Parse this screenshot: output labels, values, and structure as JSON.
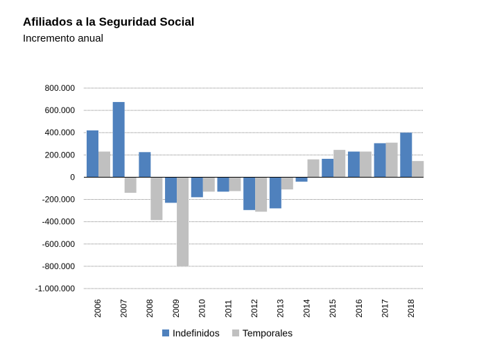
{
  "chart_data": {
    "type": "bar",
    "title": "Afiliados a la Seguridad Social",
    "subtitle": "Incremento anual",
    "categories": [
      "2006",
      "2007",
      "2008",
      "2009",
      "2010",
      "2011",
      "2012",
      "2013",
      "2014",
      "2015",
      "2016",
      "2017",
      "2018"
    ],
    "series": [
      {
        "name": "Indefinidos",
        "color": "#4f81bd",
        "values": [
          420000,
          675000,
          225000,
          -230000,
          -180000,
          -130000,
          -295000,
          -280000,
          -40000,
          165000,
          230000,
          305000,
          400000
        ]
      },
      {
        "name": "Temporales",
        "color": "#c0c0c0",
        "values": [
          230000,
          -140000,
          -385000,
          -800000,
          -130000,
          -125000,
          -310000,
          -110000,
          160000,
          245000,
          230000,
          310000,
          145000
        ]
      }
    ],
    "yticks": [
      "800.000",
      "600.000",
      "400.000",
      "200.000",
      "0",
      "-200.000",
      "-400.000",
      "-600.000",
      "-800.000",
      "-1.000.000"
    ],
    "ylim": [
      -1000000,
      800000
    ],
    "grid": true,
    "legend_position": "bottom"
  }
}
